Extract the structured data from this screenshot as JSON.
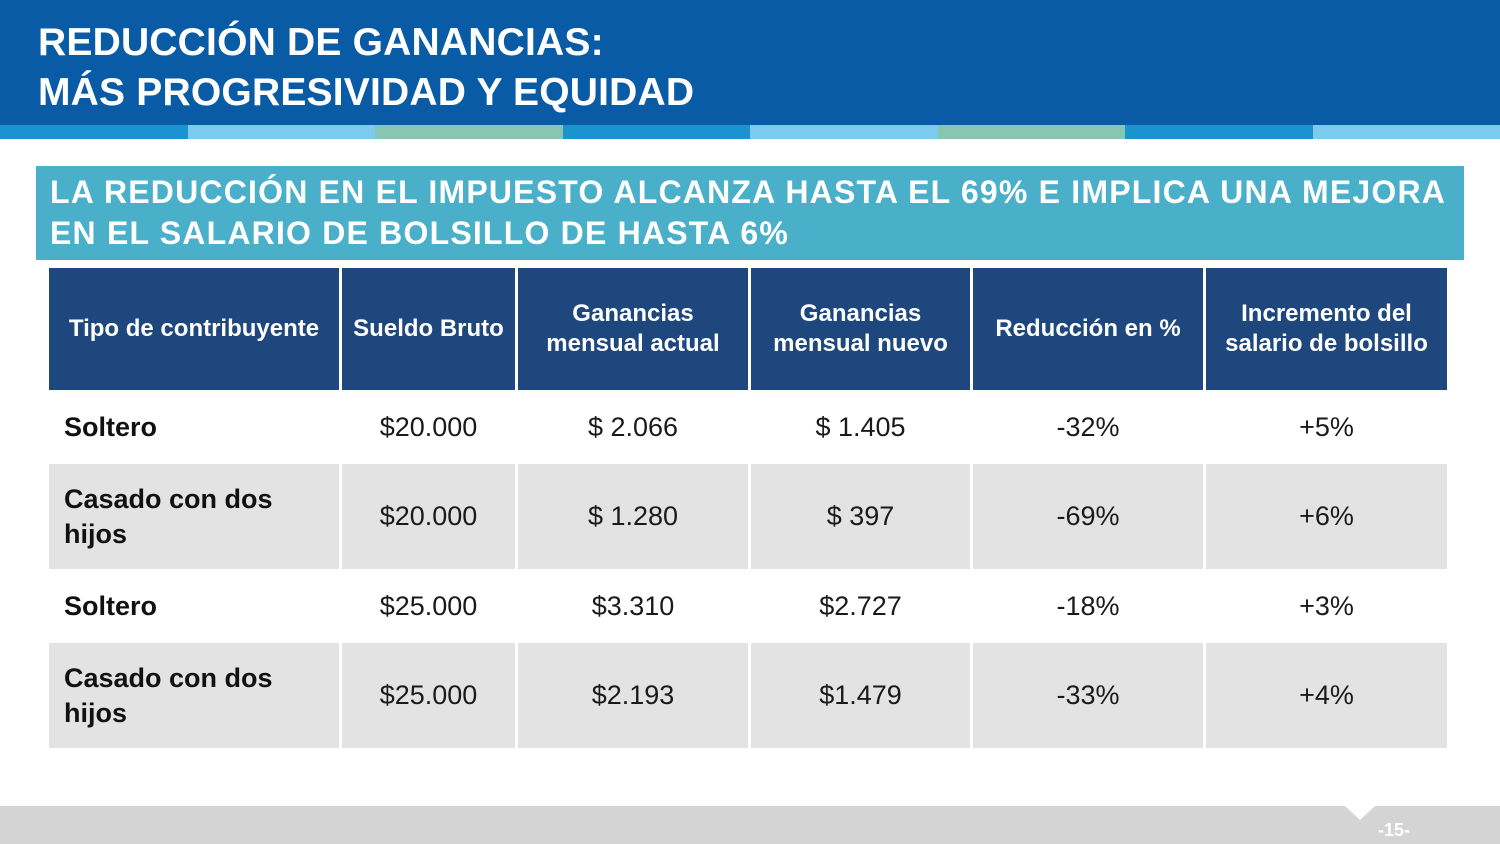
{
  "header": {
    "title": "REDUCCIÓN DE GANANCIAS:\nMÁS PROGRESIVIDAD Y EQUIDAD"
  },
  "stripe_colors": [
    "#1a93cf",
    "#7ccbee",
    "#87c7b1",
    "#1a93cf",
    "#7ccbee",
    "#87c7b1",
    "#1a93cf",
    "#7ccbee"
  ],
  "subtitle": "LA REDUCCIÓN EN EL IMPUESTO ALCANZA HASTA EL 69% E IMPLICA UNA MEJORA EN EL SALARIO DE BOLSILLO DE HASTA 6%",
  "table": {
    "headers": [
      "Tipo de contribuyente",
      "Sueldo Bruto",
      "Ganancias mensual actual",
      "Ganancias mensual nuevo",
      "Reducción en %",
      "Incremento del salario de bolsillo"
    ],
    "rows": [
      [
        "Soltero",
        "$20.000",
        "$ 2.066",
        "$ 1.405",
        "-32%",
        "+5%"
      ],
      [
        "Casado con dos hijos",
        "$20.000",
        "$ 1.280",
        "$ 397",
        "-69%",
        "+6%"
      ],
      [
        "Soltero",
        "$25.000",
        "$3.310",
        "$2.727",
        "-18%",
        "+3%"
      ],
      [
        "Casado con dos hijos",
        "$25.000",
        "$2.193",
        "$1.479",
        "-33%",
        "+4%"
      ]
    ]
  },
  "footer": {
    "page_number": "-15-"
  }
}
